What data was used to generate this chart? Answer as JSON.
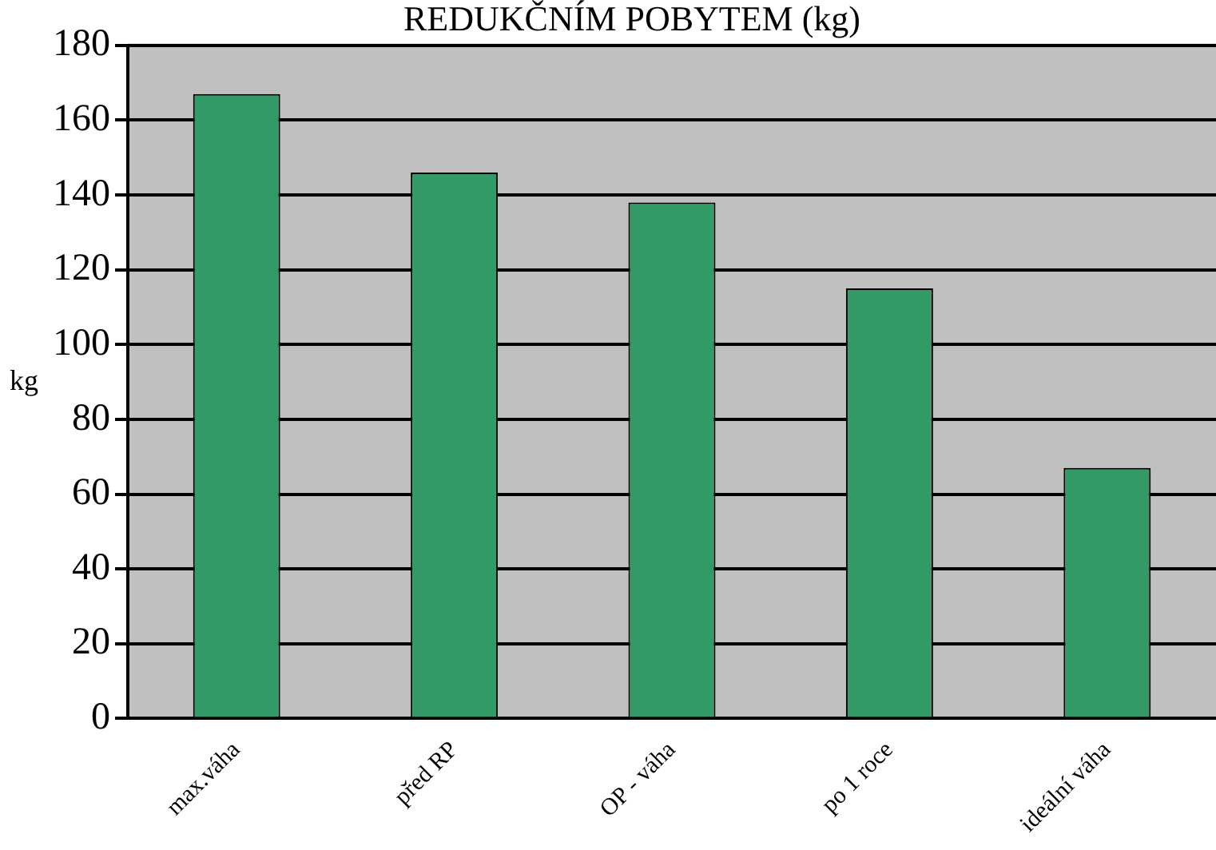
{
  "chart_data": {
    "type": "bar",
    "title": "REDUKČNÍM POBYTEM (kg)",
    "ylabel": "kg",
    "categories": [
      "max.váha",
      "před RP",
      "OP - váha",
      "po 1 roce",
      "ideální váha"
    ],
    "values": [
      167,
      146,
      138,
      115,
      67
    ],
    "color": "#339966",
    "ylim": [
      0,
      180
    ],
    "yticks": [
      0,
      20,
      40,
      60,
      80,
      100,
      120,
      140,
      160,
      180
    ],
    "grid": "y",
    "legend": false
  }
}
